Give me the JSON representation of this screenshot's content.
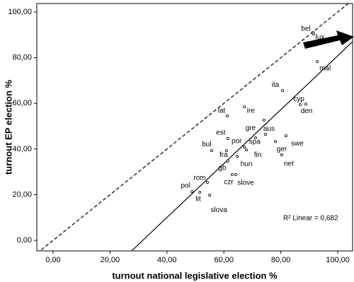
{
  "chart_data": {
    "type": "scatter",
    "x_label": "turnout national legislative election %",
    "y_label": "turnout EP election %",
    "annotation": "R² Linear = 0,682",
    "xlim": [
      -5.7,
      105.2
    ],
    "ylim": [
      -4.6,
      103.7
    ],
    "xticks": [
      {
        "value": 0,
        "label": "0,00"
      },
      {
        "value": 20,
        "label": "20,00"
      },
      {
        "value": 40,
        "label": "40,00"
      },
      {
        "value": 60,
        "label": "60,00"
      },
      {
        "value": 80,
        "label": "80,00"
      },
      {
        "value": 100,
        "label": "100,00"
      }
    ],
    "yticks": [
      {
        "value": 0,
        "label": "0,00"
      },
      {
        "value": 20,
        "label": "20,00"
      },
      {
        "value": 40,
        "label": "40,00"
      },
      {
        "value": 60,
        "label": "60,00"
      },
      {
        "value": 80,
        "label": "80,00"
      },
      {
        "value": 100,
        "label": "100,00"
      }
    ],
    "labels": [
      "bel",
      "lux",
      "mal",
      "ita",
      "cyp",
      "den",
      "lat",
      "ire",
      "gre",
      "aus",
      "est",
      "bul",
      "por",
      "spa",
      "swe",
      "ger",
      "fra",
      "fin",
      "net",
      "hun",
      "gb",
      "rom",
      "czr",
      "slove",
      "pol",
      "lit",
      "slova"
    ],
    "x": [
      91.3,
      91.5,
      92.8,
      80.6,
      86.8,
      88.8,
      61.2,
      67.2,
      74.1,
      74.6,
      61.4,
      55.7,
      67.2,
      71.1,
      81.8,
      78.1,
      60.9,
      67.9,
      80.3,
      64.7,
      61.4,
      54.2,
      62.9,
      64.2,
      48.8,
      51.5,
      55.0
    ],
    "values": [
      91.0,
      90.4,
      78.3,
      65.6,
      59.4,
      59.7,
      54.5,
      58.5,
      52.6,
      46.4,
      44.6,
      39.3,
      40.9,
      44.9,
      45.8,
      43.3,
      39.3,
      39.6,
      37.5,
      36.8,
      34.7,
      25.4,
      28.8,
      28.8,
      21.4,
      21.1,
      19.8
    ],
    "fit_line": {
      "x": [
        27.6,
        105.2
      ],
      "y": [
        -4.6,
        87.0
      ]
    }
  }
}
